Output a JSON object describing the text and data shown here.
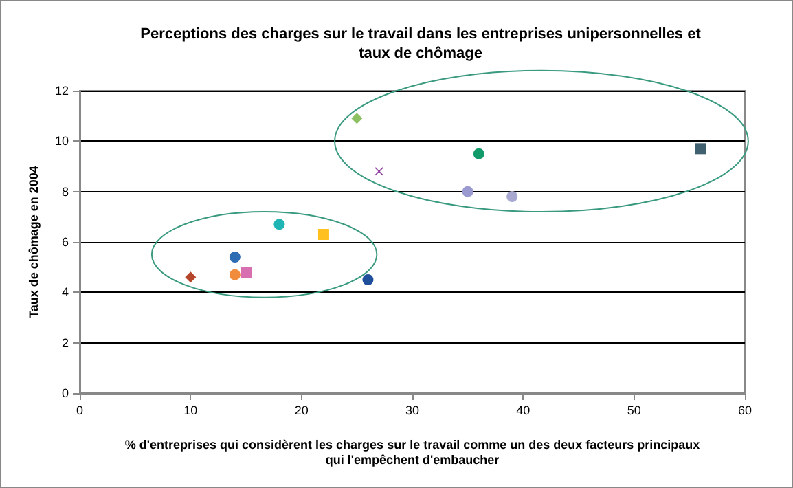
{
  "chart_data": {
    "type": "scatter",
    "title": "Perceptions des charges sur le travail dans les entreprises unipersonnelles et\ntaux de chômage",
    "xlabel": "% d'entreprises qui considèrent les charges sur le travail comme un des deux facteurs principaux\nqui l'empêchent d'embaucher",
    "ylabel": "Taux de chômage en 2004",
    "xlim": [
      0,
      60
    ],
    "xticks": [
      0,
      10,
      20,
      30,
      40,
      50,
      60
    ],
    "ylim": [
      0,
      12
    ],
    "yticks": [
      0,
      2,
      4,
      6,
      8,
      10,
      12
    ],
    "grid": "y",
    "series": [
      {
        "color": "#b5452a",
        "marker": "diamond",
        "x": [
          10
        ],
        "values": [
          4.6
        ]
      },
      {
        "color": "#2e6db4",
        "marker": "circle",
        "x": [
          14
        ],
        "values": [
          5.4
        ]
      },
      {
        "color": "#f08c3c",
        "marker": "circle",
        "x": [
          14
        ],
        "values": [
          4.7
        ]
      },
      {
        "color": "#d86fb0",
        "marker": "square",
        "x": [
          15
        ],
        "values": [
          4.8
        ]
      },
      {
        "color": "#1fb5b5",
        "marker": "circle",
        "x": [
          18
        ],
        "values": [
          6.7
        ]
      },
      {
        "color": "#ffc020",
        "marker": "square",
        "x": [
          22
        ],
        "values": [
          6.3
        ]
      },
      {
        "color": "#1f4e9a",
        "marker": "circle",
        "x": [
          26
        ],
        "values": [
          4.5
        ]
      },
      {
        "color": "#8cc060",
        "marker": "diamond",
        "x": [
          25
        ],
        "values": [
          10.9
        ]
      },
      {
        "color": "#9040a0",
        "marker": "cross",
        "x": [
          27
        ],
        "values": [
          8.8
        ]
      },
      {
        "color": "#119a6a",
        "marker": "circle",
        "x": [
          36
        ],
        "values": [
          9.5
        ]
      },
      {
        "color": "#9a9ad0",
        "marker": "circle",
        "x": [
          35
        ],
        "values": [
          8.0
        ]
      },
      {
        "color": "#a8a8d0",
        "marker": "circle",
        "x": [
          39
        ],
        "values": [
          7.8
        ]
      },
      {
        "color": "#406070",
        "marker": "square",
        "x": [
          56
        ],
        "values": [
          9.7
        ]
      }
    ]
  }
}
